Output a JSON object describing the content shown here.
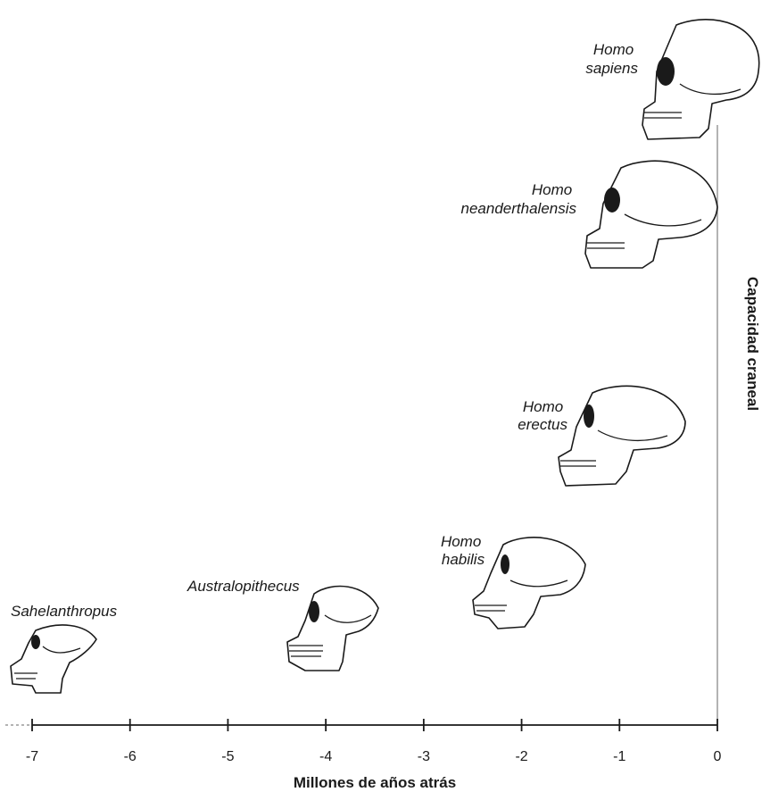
{
  "axis": {
    "x_title": "Millones de años atrás",
    "y_title": "Capacidad craneal",
    "ticks": [
      "-7",
      "-6",
      "-5",
      "-4",
      "-3",
      "-2",
      "-1",
      "0"
    ]
  },
  "species": [
    {
      "id": "sahelanthropus",
      "lines": [
        "Sahelanthropus"
      ]
    },
    {
      "id": "australopithecus",
      "lines": [
        "Australopithecus"
      ]
    },
    {
      "id": "homo-habilis",
      "lines": [
        "Homo",
        "habilis"
      ]
    },
    {
      "id": "homo-erectus",
      "lines": [
        "Homo",
        "erectus"
      ]
    },
    {
      "id": "homo-neanderthalensis",
      "lines": [
        "Homo",
        "neanderthalensis"
      ]
    },
    {
      "id": "homo-sapiens",
      "lines": [
        "Homo",
        "sapiens"
      ]
    }
  ],
  "colors": {
    "ink": "#1a1a1a",
    "axis": "#9a9a9a",
    "background": "#ffffff"
  }
}
